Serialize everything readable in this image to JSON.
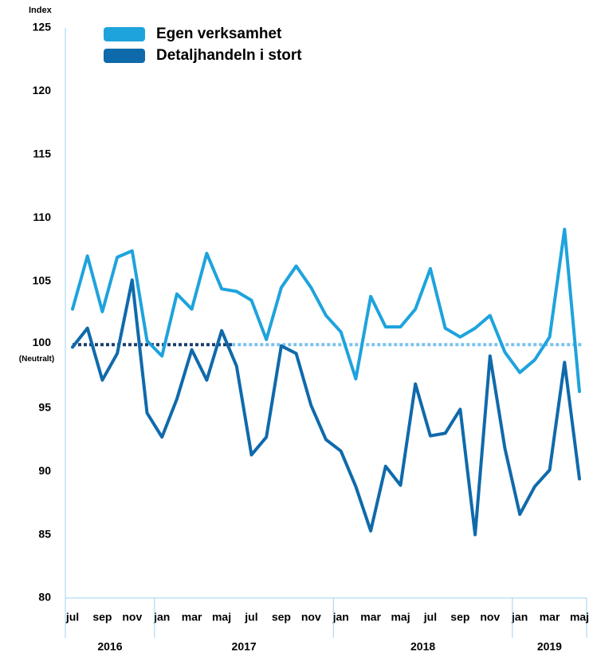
{
  "chart_data": {
    "type": "line",
    "y_axis_label": "Index",
    "categories": [
      "jul",
      null,
      "sep",
      null,
      "nov",
      null,
      "jan",
      null,
      "mar",
      null,
      "maj",
      null,
      "jul",
      null,
      "sep",
      null,
      "nov",
      null,
      "jan",
      null,
      "mar",
      null,
      "maj",
      null,
      "jul",
      null,
      "sep",
      null,
      "nov",
      null,
      "jan",
      null,
      "mar",
      null,
      "maj"
    ],
    "years": [
      "2016",
      "2017",
      "2018",
      "2019"
    ],
    "series": [
      {
        "name": "Egen verksamhet",
        "color": "#1ea3dc",
        "values": [
          102.8,
          107.0,
          102.6,
          106.9,
          107.4,
          100.3,
          99.1,
          104.0,
          102.8,
          107.2,
          104.4,
          104.2,
          103.5,
          100.4,
          104.5,
          106.2,
          104.5,
          102.3,
          101.0,
          97.3,
          103.8,
          101.4,
          101.4,
          102.8,
          106.0,
          101.3,
          100.6,
          101.3,
          102.3,
          99.4,
          97.8,
          98.8,
          100.6,
          109.1,
          96.3
        ]
      },
      {
        "name": "Detaljhandeln i stort",
        "color": "#0f6aab",
        "values": [
          99.8,
          101.3,
          97.2,
          99.3,
          105.1,
          94.6,
          92.7,
          95.7,
          99.6,
          97.2,
          101.1,
          98.3,
          91.3,
          92.7,
          99.9,
          99.3,
          95.2,
          92.5,
          91.6,
          88.8,
          85.3,
          90.4,
          88.9,
          96.9,
          92.8,
          93.0,
          94.9,
          85.0,
          99.1,
          91.8,
          86.6,
          88.8,
          90.1,
          98.6,
          89.4
        ]
      }
    ],
    "reference_line": {
      "value": 100,
      "label": "(Neutralt)",
      "colors": [
        "#1a3f6e",
        "#7cc3ec"
      ]
    },
    "ylim": [
      80,
      125
    ],
    "yticks": [
      80,
      85,
      90,
      95,
      100,
      105,
      110,
      115,
      120,
      125
    ]
  }
}
